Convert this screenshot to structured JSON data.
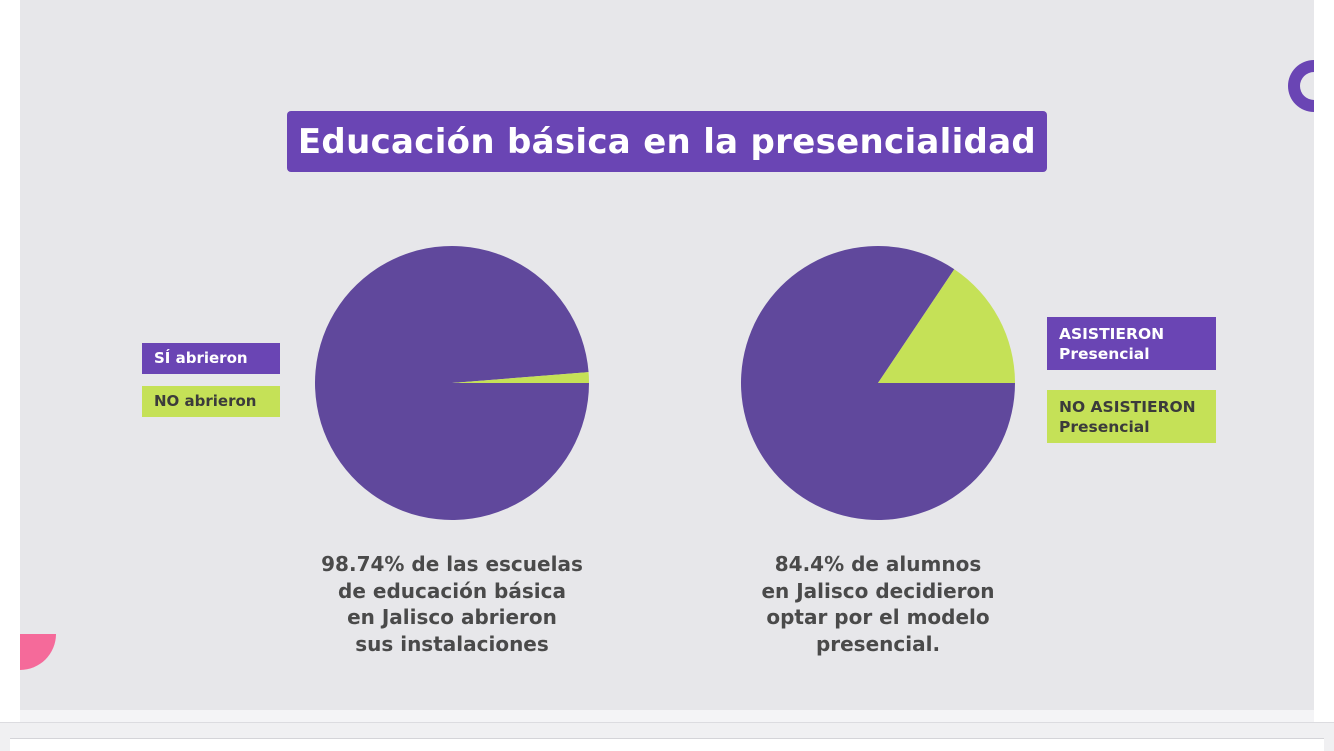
{
  "title": "Educación básica en la presencialidad",
  "colors": {
    "primary": "#6a45b4",
    "pie_purple": "#60489c",
    "accent_green": "#c5e157",
    "pink": "#f56a9a"
  },
  "chart_data": [
    {
      "type": "pie",
      "title": "",
      "slices": [
        {
          "label": "SÍ abrieron",
          "value": 98.74,
          "color": "#60489c"
        },
        {
          "label": "NO abrieron",
          "value": 1.26,
          "color": "#c5e157"
        }
      ],
      "legend_position": "left",
      "caption_lines": [
        "98.74% de las escuelas",
        "de educación básica",
        "en Jalisco abrieron",
        "sus instalaciones"
      ]
    },
    {
      "type": "pie",
      "title": "",
      "slices": [
        {
          "label": "ASISTIERON Presencial",
          "value": 84.4,
          "color": "#60489c"
        },
        {
          "label": "NO ASISTIERON Presencial",
          "value": 15.6,
          "color": "#c5e157"
        }
      ],
      "legend_position": "right",
      "caption_lines": [
        "84.4% de alumnos",
        "en Jalisco decidieron",
        "optar por el modelo",
        "presencial."
      ]
    }
  ],
  "legend_right": {
    "asistieron": [
      "ASISTIERON",
      "Presencial"
    ],
    "no_asistieron": [
      "NO ASISTIERON",
      "Presencial"
    ]
  }
}
